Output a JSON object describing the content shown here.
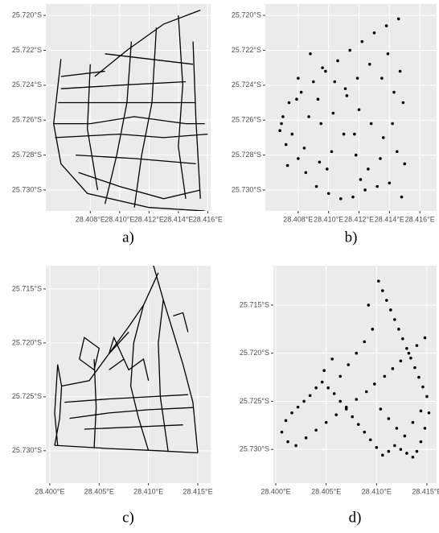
{
  "chart_data": [
    {
      "type": "line",
      "caption": "a)",
      "color": "#000000",
      "grid": true,
      "xlim": [
        28.40497,
        28.4162
      ],
      "ylim": [
        -25.7312,
        -25.71935
      ],
      "xticks": [
        {
          "value": 28.408,
          "label": "28.408°E"
        },
        {
          "value": 28.41,
          "label": "28.410°E"
        },
        {
          "value": 28.412,
          "label": "28.412°E"
        },
        {
          "value": 28.414,
          "label": "28.414°E"
        },
        {
          "value": 28.416,
          "label": "28.416°E"
        }
      ],
      "yticks": [
        {
          "value": -25.72,
          "label": "25.720°S"
        },
        {
          "value": -25.722,
          "label": "25.722°S"
        },
        {
          "value": -25.724,
          "label": "25.724°S"
        },
        {
          "value": -25.726,
          "label": "25.726°S"
        },
        {
          "value": -25.728,
          "label": "25.728°S"
        },
        {
          "value": -25.73,
          "label": "25.730°S"
        }
      ],
      "series": [
        {
          "x": [
            28.4083,
            28.4105,
            28.413,
            28.4155
          ],
          "values": [
            -25.7235,
            -25.722,
            -25.7205,
            -25.7197
          ]
        },
        {
          "x": [
            28.4108,
            28.4105,
            28.4098,
            28.409
          ],
          "values": [
            -25.7215,
            -25.725,
            -25.728,
            -25.7308
          ]
        },
        {
          "x": [
            28.4125,
            28.4122,
            28.4115,
            28.411
          ],
          "values": [
            -25.7207,
            -25.725,
            -25.728,
            -25.731
          ]
        },
        {
          "x": [
            28.414,
            28.4143,
            28.414,
            28.4145
          ],
          "values": [
            -25.72,
            -25.724,
            -25.7275,
            -25.7305
          ]
        },
        {
          "x": [
            28.4055,
            28.408,
            28.411,
            28.4145,
            28.4158
          ],
          "values": [
            -25.7262,
            -25.7262,
            -25.7258,
            -25.7262,
            -25.7262
          ]
        },
        {
          "x": [
            28.4056,
            28.41,
            28.413,
            28.416
          ],
          "values": [
            -25.727,
            -25.7268,
            -25.727,
            -25.7268
          ]
        },
        {
          "x": [
            28.406,
            28.41,
            28.4145
          ],
          "values": [
            -25.7242,
            -25.724,
            -25.7238
          ]
        },
        {
          "x": [
            28.406,
            28.409
          ],
          "values": [
            -25.7235,
            -25.7232
          ]
        },
        {
          "x": [
            28.4072,
            28.41,
            28.413,
            28.4155
          ],
          "values": [
            -25.729,
            -25.7298,
            -25.7305,
            -25.73
          ]
        },
        {
          "x": [
            28.406,
            28.4055,
            28.406,
            28.4078,
            28.412,
            28.4158
          ],
          "values": [
            -25.7225,
            -25.7262,
            -25.7285,
            -25.7302,
            -25.731,
            -25.7312
          ]
        },
        {
          "x": [
            28.407,
            28.411,
            28.4152
          ],
          "values": [
            -25.728,
            -25.7282,
            -25.7285
          ]
        },
        {
          "x": [
            28.4058,
            28.411,
            28.4152
          ],
          "values": [
            -25.725,
            -25.725,
            -25.725
          ]
        },
        {
          "x": [
            28.408,
            28.4078,
            28.4085
          ],
          "values": [
            -25.7228,
            -25.7265,
            -25.73
          ]
        },
        {
          "x": [
            28.415,
            28.4152,
            28.4155
          ],
          "values": [
            -25.7215,
            -25.726,
            -25.7305
          ]
        },
        {
          "x": [
            28.409,
            28.412,
            28.415
          ],
          "values": [
            -25.7222,
            -25.7225,
            -25.7228
          ]
        }
      ]
    },
    {
      "type": "scatter",
      "caption": "b)",
      "color": "#000000",
      "grid": true,
      "xlim": [
        28.40584,
        28.4171
      ],
      "ylim": [
        -25.7312,
        -25.71935
      ],
      "xticks": [
        {
          "value": 28.408,
          "label": "28.408°E"
        },
        {
          "value": 28.41,
          "label": "28.410°E"
        },
        {
          "value": 28.412,
          "label": "28.412°E"
        },
        {
          "value": 28.414,
          "label": "28.414°E"
        },
        {
          "value": 28.416,
          "label": "28.416°E"
        }
      ],
      "yticks": [
        {
          "value": -25.72,
          "label": "25.720°S"
        },
        {
          "value": -25.722,
          "label": "25.722°S"
        },
        {
          "value": -25.724,
          "label": "25.724°S"
        },
        {
          "value": -25.726,
          "label": "25.726°S"
        },
        {
          "value": -25.728,
          "label": "25.728°S"
        },
        {
          "value": -25.73,
          "label": "25.730°S"
        }
      ],
      "x": [
        28.4146,
        28.4138,
        28.413,
        28.4122,
        28.4114,
        28.4106,
        28.4098,
        28.409,
        28.4082,
        28.4074,
        28.407,
        28.4068,
        28.4072,
        28.408,
        28.4085,
        28.4092,
        28.41,
        28.4108,
        28.4116,
        28.4124,
        28.4132,
        28.414,
        28.4148,
        28.415,
        28.4145,
        28.4136,
        28.4128,
        28.412,
        28.4112,
        28.4104,
        28.4096,
        28.4088,
        28.408,
        28.4076,
        28.4084,
        28.4094,
        28.4102,
        28.411,
        28.4118,
        28.4126,
        28.4134,
        28.4142,
        28.4149,
        28.4143,
        28.4135,
        28.4127,
        28.4119,
        28.4111,
        28.4103,
        28.4095,
        28.4087,
        28.4079,
        28.4069,
        28.4073,
        28.4099,
        28.4121,
        28.4139,
        28.4147,
        28.4117,
        28.4093
      ],
      "values": [
        -25.7202,
        -25.7206,
        -25.721,
        -25.7215,
        -25.722,
        -25.7226,
        -25.7232,
        -25.7238,
        -25.7244,
        -25.725,
        -25.7258,
        -25.7266,
        -25.7274,
        -25.7282,
        -25.729,
        -25.7298,
        -25.7302,
        -25.7305,
        -25.7304,
        -25.73,
        -25.7298,
        -25.7296,
        -25.7304,
        -25.7285,
        -25.7278,
        -25.727,
        -25.7262,
        -25.7254,
        -25.7246,
        -25.7238,
        -25.723,
        -25.7222,
        -25.7236,
        -25.7268,
        -25.7276,
        -25.7284,
        -25.7278,
        -25.7268,
        -25.728,
        -25.7288,
        -25.7282,
        -25.7262,
        -25.725,
        -25.7244,
        -25.7236,
        -25.7228,
        -25.7236,
        -25.7242,
        -25.7256,
        -25.7262,
        -25.7258,
        -25.7248,
        -25.7262,
        -25.7286,
        -25.7288,
        -25.7294,
        -25.7222,
        -25.7232,
        -25.7268,
        -25.7248
      ]
    },
    {
      "type": "line",
      "caption": "c)",
      "color": "#000000",
      "grid": true,
      "xlim": [
        28.3996,
        28.4163
      ],
      "ylim": [
        -25.733,
        -25.71284
      ],
      "xticks": [
        {
          "value": 28.4,
          "label": "28.400°E"
        },
        {
          "value": 28.405,
          "label": "28.405°E"
        },
        {
          "value": 28.41,
          "label": "28.410°E"
        },
        {
          "value": 28.415,
          "label": "28.415°E"
        }
      ],
      "yticks": [
        {
          "value": -25.715,
          "label": "25.715°S"
        },
        {
          "value": -25.72,
          "label": "25.720°S"
        },
        {
          "value": -25.725,
          "label": "25.725°S"
        },
        {
          "value": -25.73,
          "label": "25.730°S"
        }
      ],
      "series": [
        {
          "x": [
            28.4005,
            28.401,
            28.4012,
            28.4008,
            28.4005,
            28.4008
          ],
          "values": [
            -25.7295,
            -25.727,
            -25.724,
            -25.722,
            -25.7265,
            -25.7295
          ]
        },
        {
          "x": [
            28.4005,
            28.406,
            28.411,
            28.415
          ],
          "values": [
            -25.7295,
            -25.7298,
            -25.73,
            -25.7302
          ]
        },
        {
          "x": [
            28.4012,
            28.404,
            28.406,
            28.408
          ],
          "values": [
            -25.724,
            -25.7235,
            -25.721,
            -25.719
          ]
        },
        {
          "x": [
            28.406,
            28.408,
            28.4095,
            28.411
          ],
          "values": [
            -25.721,
            -25.7185,
            -25.7165,
            -25.7135
          ]
        },
        {
          "x": [
            28.4105,
            28.4115,
            28.4125,
            28.4135,
            28.4145,
            28.415
          ],
          "values": [
            -25.7128,
            -25.716,
            -25.719,
            -25.722,
            -25.7255,
            -25.7302
          ]
        },
        {
          "x": [
            28.4015,
            28.406,
            28.41,
            28.414
          ],
          "values": [
            -25.7255,
            -25.7252,
            -25.725,
            -25.7248
          ]
        },
        {
          "x": [
            28.402,
            28.406,
            28.41,
            28.4145
          ],
          "values": [
            -25.727,
            -25.7265,
            -25.7262,
            -25.726
          ]
        },
        {
          "x": [
            28.4035,
            28.4085,
            28.4135
          ],
          "values": [
            -25.728,
            -25.7278,
            -25.7276
          ]
        },
        {
          "x": [
            28.4095,
            28.4085,
            28.4082,
            28.409,
            28.41
          ],
          "values": [
            -25.7165,
            -25.72,
            -25.724,
            -25.727,
            -25.73
          ]
        },
        {
          "x": [
            28.4115,
            28.411,
            28.4112,
            28.412
          ],
          "values": [
            -25.716,
            -25.72,
            -25.725,
            -25.7301
          ]
        },
        {
          "x": [
            28.4045,
            28.4047,
            28.4045
          ],
          "values": [
            -25.7215,
            -25.726,
            -25.7297
          ]
        },
        {
          "x": [
            28.406,
            28.4065,
            28.4075,
            28.406
          ],
          "values": [
            -25.721,
            -25.7195,
            -25.7215,
            -25.7225
          ]
        },
        {
          "x": [
            28.4075,
            28.408,
            28.4095,
            28.41
          ],
          "values": [
            -25.7215,
            -25.7225,
            -25.7215,
            -25.7235
          ]
        },
        {
          "x": [
            28.403,
            28.4035,
            28.405,
            28.4045,
            28.403
          ],
          "values": [
            -25.7215,
            -25.7195,
            -25.7205,
            -25.7225,
            -25.7215
          ]
        },
        {
          "x": [
            28.4125,
            28.4135,
            28.414
          ],
          "values": [
            -25.7175,
            -25.7172,
            -25.719
          ]
        }
      ]
    },
    {
      "type": "scatter",
      "caption": "d)",
      "color": "#000000",
      "grid": true,
      "xlim": [
        28.39976,
        28.41596
      ],
      "ylim": [
        -25.7335,
        -25.7109
      ],
      "xticks": [
        {
          "value": 28.4,
          "label": "28.400°E"
        },
        {
          "value": 28.405,
          "label": "28.405°E"
        },
        {
          "value": 28.41,
          "label": "28.410°E"
        },
        {
          "value": 28.415,
          "label": "28.415°E"
        }
      ],
      "yticks": [
        {
          "value": -25.715,
          "label": "25.715°S"
        },
        {
          "value": -25.72,
          "label": "25.720°S"
        },
        {
          "value": -25.725,
          "label": "25.725°S"
        },
        {
          "value": -25.73,
          "label": "25.730°S"
        }
      ],
      "x": [
        28.4102,
        28.4106,
        28.411,
        28.4114,
        28.4118,
        28.4122,
        28.4126,
        28.413,
        28.4134,
        28.4138,
        28.4142,
        28.4146,
        28.415,
        28.4152,
        28.4148,
        28.4144,
        28.414,
        28.4136,
        28.413,
        28.4124,
        28.4118,
        28.4112,
        28.4106,
        28.41,
        28.4094,
        28.4088,
        28.4082,
        28.4076,
        28.407,
        28.4064,
        28.4058,
        28.4052,
        28.4046,
        28.404,
        28.4034,
        28.4028,
        28.4022,
        28.4016,
        28.401,
        28.4006,
        28.4012,
        28.402,
        28.403,
        28.404,
        28.405,
        28.406,
        28.407,
        28.408,
        28.409,
        28.4098,
        28.4108,
        28.4116,
        28.4124,
        28.4132,
        28.414,
        28.4148,
        28.4096,
        28.4088,
        28.408,
        28.4072,
        28.4064,
        28.4056,
        28.4048,
        28.4104,
        28.4112,
        28.412,
        28.4128,
        28.4136,
        28.4144,
        28.4092
      ],
      "values": [
        -25.7125,
        -25.7135,
        -25.7145,
        -25.7155,
        -25.7165,
        -25.7175,
        -25.7185,
        -25.7195,
        -25.7205,
        -25.7215,
        -25.7225,
        -25.7235,
        -25.7245,
        -25.7262,
        -25.7278,
        -25.7292,
        -25.7302,
        -25.7308,
        -25.7304,
        -25.73,
        -25.7296,
        -25.7302,
        -25.7306,
        -25.7298,
        -25.729,
        -25.7282,
        -25.7274,
        -25.7266,
        -25.7258,
        -25.725,
        -25.7242,
        -25.7236,
        -25.723,
        -25.7236,
        -25.7244,
        -25.725,
        -25.7256,
        -25.7262,
        -25.727,
        -25.7282,
        -25.7292,
        -25.7296,
        -25.7288,
        -25.728,
        -25.7272,
        -25.7264,
        -25.7256,
        -25.7248,
        -25.724,
        -25.7232,
        -25.7224,
        -25.7216,
        -25.7208,
        -25.72,
        -25.7192,
        -25.7184,
        -25.7175,
        -25.7188,
        -25.72,
        -25.7212,
        -25.7224,
        -25.7206,
        -25.7218,
        -25.7258,
        -25.7268,
        -25.7278,
        -25.7286,
        -25.7272,
        -25.726,
        -25.715
      ]
    }
  ]
}
